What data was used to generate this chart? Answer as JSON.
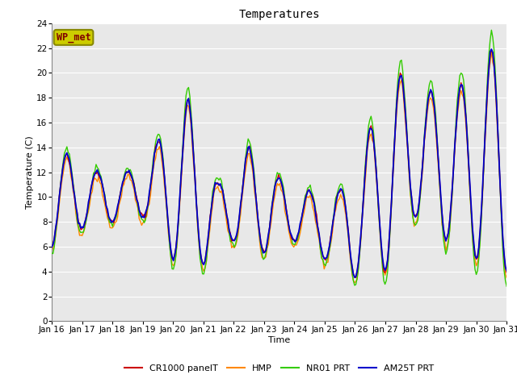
{
  "title": "Temperatures",
  "xlabel": "Time",
  "ylabel": "Temperature (C)",
  "ylim": [
    0,
    24
  ],
  "yticks": [
    0,
    2,
    4,
    6,
    8,
    10,
    12,
    14,
    16,
    18,
    20,
    22,
    24
  ],
  "xlim_start": 16,
  "xlim_end": 31,
  "xtick_labels": [
    "Jan 16",
    "Jan 17",
    "Jan 18",
    "Jan 19",
    "Jan 20",
    "Jan 21",
    "Jan 22",
    "Jan 23",
    "Jan 24",
    "Jan 25",
    "Jan 26",
    "Jan 27",
    "Jan 28",
    "Jan 29",
    "Jan 30",
    "Jan 31"
  ],
  "series_colors": {
    "CR1000 panelT": "#cc0000",
    "HMP": "#ff8800",
    "NR01 PRT": "#33cc00",
    "AM25T PRT": "#0000cc"
  },
  "series_linewidths": {
    "CR1000 panelT": 1.0,
    "HMP": 1.0,
    "NR01 PRT": 1.0,
    "AM25T PRT": 1.3
  },
  "fig_bg_color": "#ffffff",
  "plot_bg_color": "#e8e8e8",
  "grid_color": "#ffffff",
  "legend_box_facecolor": "#cccc00",
  "legend_box_edgecolor": "#888800",
  "legend_box_text_color": "#800000",
  "legend_box_label": "WP_met",
  "num_points": 360,
  "title_fontsize": 10,
  "axis_label_fontsize": 8,
  "tick_fontsize": 7.5,
  "legend_fontsize": 8
}
